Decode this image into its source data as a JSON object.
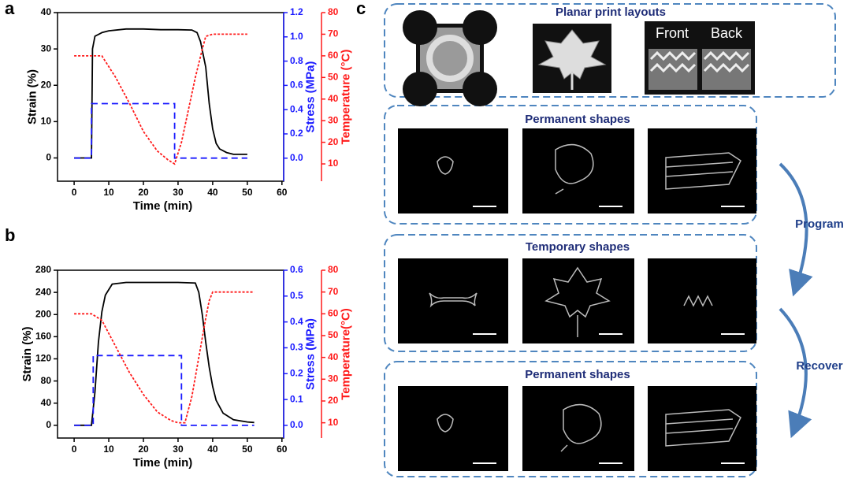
{
  "panel_labels": [
    "a",
    "b",
    "c"
  ],
  "chart_data": [
    {
      "type": "line",
      "xlabel": "Time (min)",
      "ylabel": "Strain (%)",
      "y2label": "Stress (MPa)",
      "y3label": "Temperature (°C)",
      "xlim": [
        -4.8,
        60.5
      ],
      "xticks": [
        0,
        10,
        20,
        30,
        40,
        50,
        60
      ],
      "ylim": [
        -6.4,
        40
      ],
      "yticks": [
        0,
        10,
        20,
        30,
        40
      ],
      "y2lim": [
        -0.19,
        1.2
      ],
      "y2ticks": [
        {
          "value": 0,
          "label": "0.0"
        },
        0.2,
        0.4,
        0.6,
        0.8,
        {
          "value": 1,
          "label": "1.0"
        },
        1.2
      ],
      "y3lim": [
        2,
        80
      ],
      "y3ticks": [
        10,
        20,
        30,
        40,
        50,
        60,
        70,
        80
      ],
      "series": [
        {
          "color": "#000000",
          "dash": "solid",
          "axis": "y",
          "x": [
            0,
            5,
            5.3,
            6,
            8,
            10,
            15,
            20,
            25,
            30,
            34,
            35.5,
            36.5,
            38,
            39,
            40,
            41,
            42,
            44,
            46,
            50
          ],
          "values": [
            0,
            0,
            30,
            33.5,
            34.5,
            35,
            35.5,
            35.5,
            35.3,
            35.3,
            35.2,
            34.5,
            32,
            25,
            15,
            8,
            4,
            2.5,
            1.5,
            1,
            1
          ]
        },
        {
          "color": "#1a1aff",
          "dash": "dashed",
          "axis": "y2",
          "x": [
            0,
            5,
            5,
            29,
            29,
            50
          ],
          "values": [
            0,
            0,
            0.45,
            0.45,
            0,
            0
          ]
        },
        {
          "color": "#ff1a1a",
          "dash": "dotted",
          "axis": "y3",
          "x": [
            0,
            8,
            12,
            16,
            20,
            24,
            27,
            29,
            31,
            33,
            35,
            37,
            38,
            40,
            45,
            50
          ],
          "values": [
            60,
            60,
            50,
            38,
            25,
            16,
            12,
            10,
            20,
            35,
            50,
            63,
            69,
            70,
            70,
            70
          ]
        }
      ]
    },
    {
      "type": "line",
      "xlabel": "Time (min)",
      "ylabel": "Strain (%)",
      "y2label": "Stress (MPa)",
      "y3label": "Temperature(°C)",
      "xlim": [
        -4.8,
        60.5
      ],
      "xticks": [
        0,
        10,
        20,
        30,
        40,
        50,
        60
      ],
      "ylim": [
        -23,
        280
      ],
      "yticks": [
        0,
        40,
        80,
        120,
        160,
        200,
        240,
        280
      ],
      "y2lim": [
        -0.049,
        0.6
      ],
      "y2ticks": [
        {
          "value": 0,
          "label": "0.0"
        },
        0.1,
        0.2,
        0.3,
        0.4,
        0.5,
        0.6
      ],
      "y3lim": [
        3,
        80
      ],
      "y3ticks": [
        10,
        20,
        30,
        40,
        50,
        60,
        70,
        80
      ],
      "series": [
        {
          "color": "#000000",
          "dash": "solid",
          "axis": "y",
          "x": [
            0,
            5,
            6,
            7,
            8,
            9,
            11,
            15,
            20,
            30,
            35,
            36,
            37,
            38,
            39,
            40,
            41,
            43,
            46,
            50,
            52
          ],
          "values": [
            0,
            0,
            60,
            150,
            205,
            235,
            255,
            258,
            258,
            258,
            257,
            240,
            200,
            150,
            105,
            70,
            45,
            22,
            10,
            6,
            5
          ]
        },
        {
          "color": "#1a1aff",
          "dash": "dashed",
          "axis": "y2",
          "x": [
            0,
            5.5,
            5.5,
            31,
            31,
            52
          ],
          "values": [
            0,
            0,
            0.27,
            0.27,
            0,
            0
          ]
        },
        {
          "color": "#ff1a1a",
          "dash": "dotted",
          "axis": "y3",
          "x": [
            0,
            5,
            8,
            12,
            16,
            20,
            24,
            28,
            30,
            32,
            34,
            36,
            38,
            39,
            40,
            45,
            52
          ],
          "values": [
            60,
            60,
            57,
            45,
            33,
            23,
            15,
            11,
            10,
            10,
            22,
            40,
            58,
            66,
            70,
            70,
            70
          ]
        }
      ]
    }
  ],
  "panel_c": {
    "boxes": [
      {
        "title": "Planar print layouts",
        "labels": [
          "Front",
          "Back"
        ]
      },
      {
        "title": "Permanent shapes"
      },
      {
        "title": "Temporary shapes"
      },
      {
        "title": "Permanent shapes"
      }
    ],
    "arrows": [
      "Program",
      "Recover"
    ]
  }
}
